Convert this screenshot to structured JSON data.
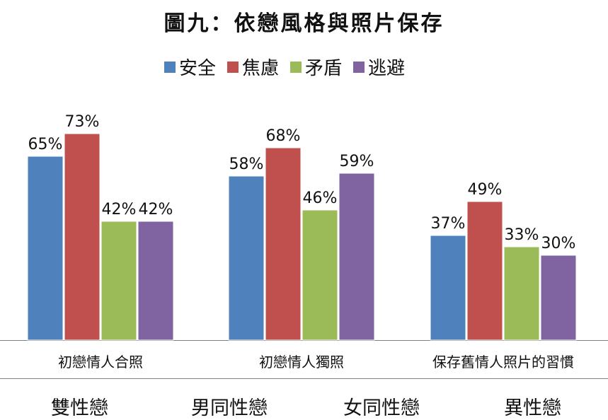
{
  "title": "圖九：依戀風格與照片保存",
  "chart_data": {
    "type": "bar",
    "categories": [
      "初戀情人合照",
      "初戀情人獨照",
      "保存舊情人照片的習慣"
    ],
    "series": [
      {
        "name": "安全",
        "color": "#4F81BD",
        "values": [
          65,
          58,
          37
        ],
        "labels": [
          "65%",
          "58%",
          "37%"
        ]
      },
      {
        "name": "焦慮",
        "color": "#C0504D",
        "values": [
          73,
          68,
          49
        ],
        "labels": [
          "73%",
          "68%",
          "49%"
        ]
      },
      {
        "name": "矛盾",
        "color": "#9BBB59",
        "values": [
          42,
          46,
          33
        ],
        "labels": [
          "42%",
          "46%",
          "33%"
        ]
      },
      {
        "name": "逃避",
        "color": "#8064A2",
        "values": [
          42,
          59,
          30
        ],
        "labels": [
          "42%",
          "59%",
          "30%"
        ]
      }
    ],
    "ylim": [
      0,
      100
    ],
    "grid": false,
    "legend_position": "top"
  },
  "bottom_labels": [
    "雙性戀",
    "男同性戀",
    "女同性戀",
    "異性戀"
  ]
}
